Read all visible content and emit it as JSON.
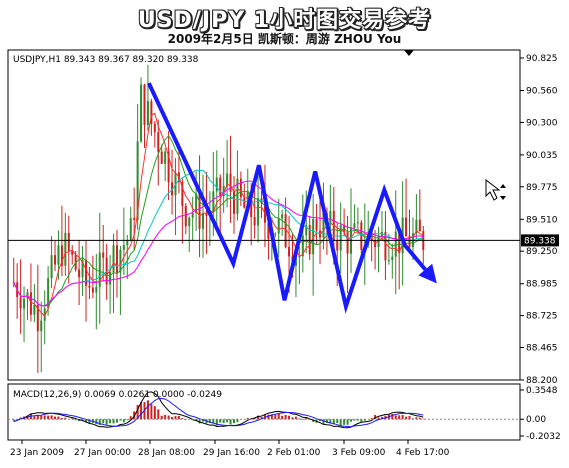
{
  "header": {
    "title": "USD/JPY 1小时图交易参考",
    "subtitle": "2009年2月5日  凯斯顿：周游 ZHOU You"
  },
  "chart_data": [
    {
      "type": "candlestick",
      "title": "",
      "info_label": "USDJPY,H1  89.343 89.367 89.320 89.338",
      "ylim": [
        88.2,
        90.9
      ],
      "y_ticks": [
        "90.825",
        "90.560",
        "90.300",
        "90.035",
        "89.775",
        "89.510",
        "89.250",
        "88.985",
        "88.725",
        "88.465",
        "88.200"
      ],
      "current_price": "89.338",
      "x_tick_labels": [
        "23 Jan 2009",
        "27 Jan 00:00",
        "28 Jan 08:00",
        "29 Jan 16:00",
        "2 Feb 01:00",
        "3 Feb 09:00",
        "4 Feb 17:00"
      ],
      "trend_zigzag": [
        {
          "bar": 0.275,
          "price": 90.62
        },
        {
          "bar": 0.44,
          "price": 89.15
        },
        {
          "bar": 0.49,
          "price": 89.95
        },
        {
          "bar": 0.54,
          "price": 88.85
        },
        {
          "bar": 0.6,
          "price": 89.9
        },
        {
          "bar": 0.66,
          "price": 88.8
        },
        {
          "bar": 0.735,
          "price": 89.75
        },
        {
          "bar": 0.775,
          "price": 89.3
        },
        {
          "bar": 0.815,
          "price": 89.1
        }
      ],
      "colors": {
        "up": "#2e8b2e",
        "down": "#d02020",
        "trend": "#1a1aff",
        "ma1": "#ff00ff",
        "ma2": "#00c8c8",
        "ma3": "#ff3030",
        "ma4": "#20a020"
      }
    },
    {
      "type": "macd",
      "info_label": "MACD(12,26,9) 0.0069 0.0261 0.0000 -0.0249",
      "y_ticks": [
        "0.3548",
        "0.00",
        "-0.2032"
      ],
      "ylim": [
        -0.2032,
        0.3548
      ]
    }
  ]
}
